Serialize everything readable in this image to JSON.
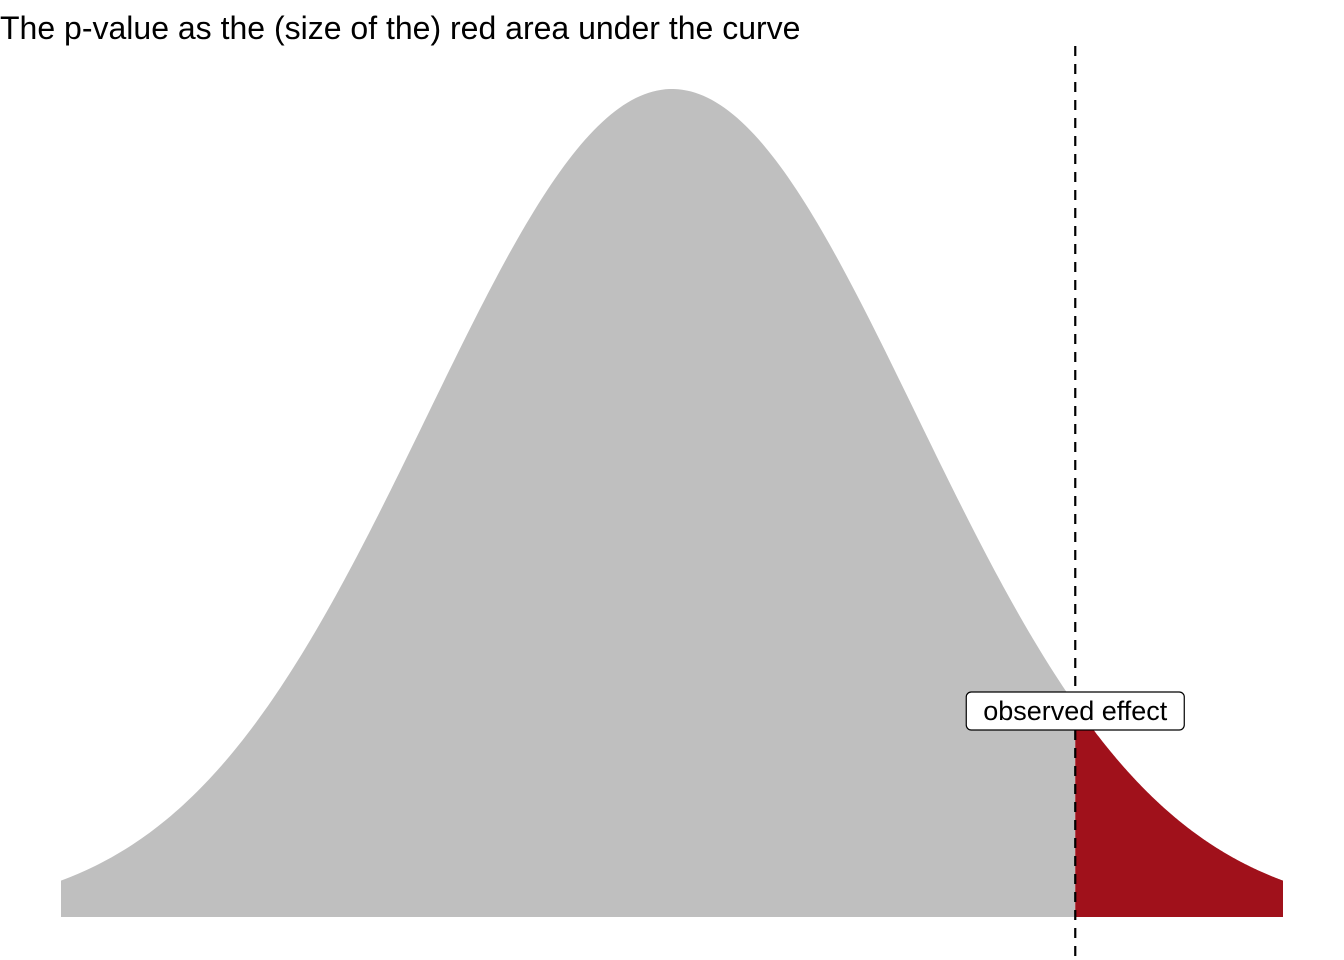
{
  "chart_data": {
    "type": "area",
    "title": "The p-value as the (size of the) red area under the curve",
    "distribution": "normal",
    "mean": 0,
    "sd": 1,
    "x_range": [
      -2.5,
      2.5
    ],
    "observed_effect": 1.65,
    "annotation": "observed effect",
    "axes_visible": false,
    "grid": false,
    "colors": {
      "body_fill": "#bfbfbf",
      "tail_fill": "#a0111b",
      "line": "#000000",
      "label_border": "#000000",
      "label_background": "#ffffff"
    }
  }
}
